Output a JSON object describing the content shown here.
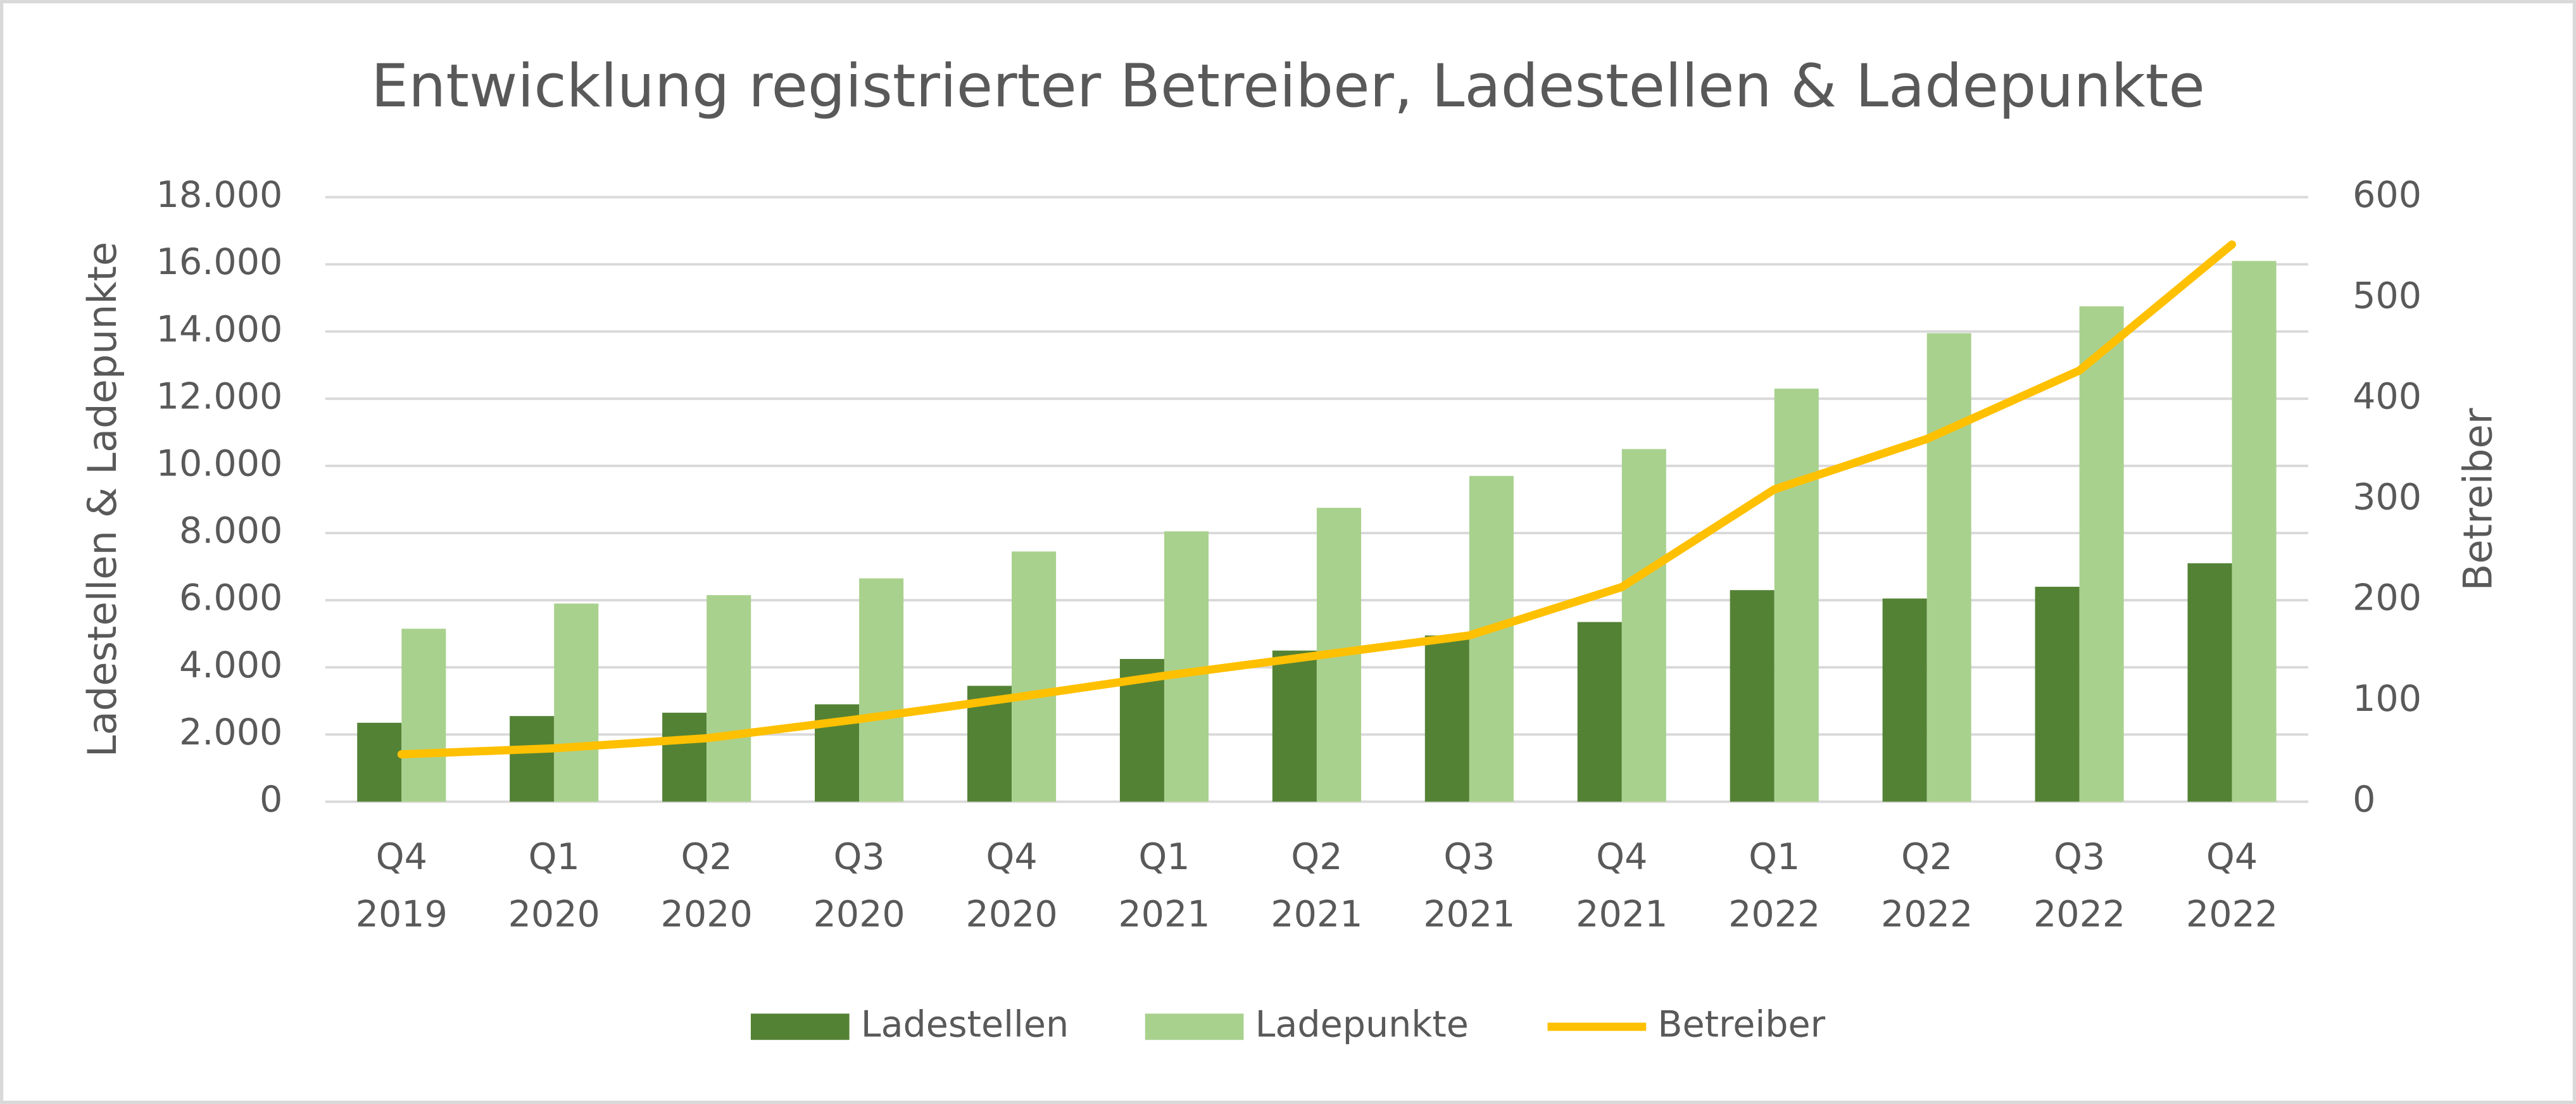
{
  "chart_data": {
    "type": "bar",
    "title": "Entwicklung registrierter Betreiber, Ladestellen & Ladepunkte",
    "y_label": "Ladestellen & Ladepunkte",
    "y2_label": "Betreiber",
    "categories": [
      [
        "Q4",
        "2019"
      ],
      [
        "Q1",
        "2020"
      ],
      [
        "Q2",
        "2020"
      ],
      [
        "Q3",
        "2020"
      ],
      [
        "Q4",
        "2020"
      ],
      [
        "Q1",
        "2021"
      ],
      [
        "Q2",
        "2021"
      ],
      [
        "Q3",
        "2021"
      ],
      [
        "Q4",
        "2021"
      ],
      [
        "Q1",
        "2022"
      ],
      [
        "Q2",
        "2022"
      ],
      [
        "Q3",
        "2022"
      ],
      [
        "Q4",
        "2022"
      ]
    ],
    "series": [
      {
        "name": "Ladestellen",
        "type": "bar",
        "color": "#548235",
        "values": [
          2350,
          2550,
          2650,
          2900,
          3450,
          4250,
          4500,
          4950,
          5350,
          6300,
          6050,
          6400,
          7100
        ]
      },
      {
        "name": "Ladepunkte",
        "type": "bar",
        "color": "#a9d18e",
        "values": [
          5150,
          5900,
          6150,
          6650,
          7450,
          8050,
          8750,
          9700,
          10500,
          12300,
          13950,
          14750,
          16100
        ]
      },
      {
        "name": "Betreiber",
        "type": "line",
        "axis": "y2",
        "color": "#ffc000",
        "values": [
          47,
          53,
          63,
          82,
          103,
          125,
          145,
          165,
          213,
          310,
          360,
          428,
          553
        ]
      }
    ],
    "ylim": [
      0,
      18000
    ],
    "yticks": [
      0,
      {
        "value": 2000,
        "label": "2.000"
      },
      {
        "value": 4000,
        "label": "4.000"
      },
      {
        "value": 6000,
        "label": "6.000"
      },
      {
        "value": 8000,
        "label": "8.000"
      },
      {
        "value": 10000,
        "label": "10.000"
      },
      {
        "value": 12000,
        "label": "12.000"
      },
      {
        "value": 14000,
        "label": "14.000"
      },
      {
        "value": 16000,
        "label": "16.000"
      },
      {
        "value": 18000,
        "label": "18.000"
      }
    ],
    "y2lim": [
      0,
      600
    ],
    "y2ticks": [
      0,
      100,
      200,
      300,
      400,
      500,
      600
    ],
    "grid": true,
    "legend": "bottom"
  }
}
